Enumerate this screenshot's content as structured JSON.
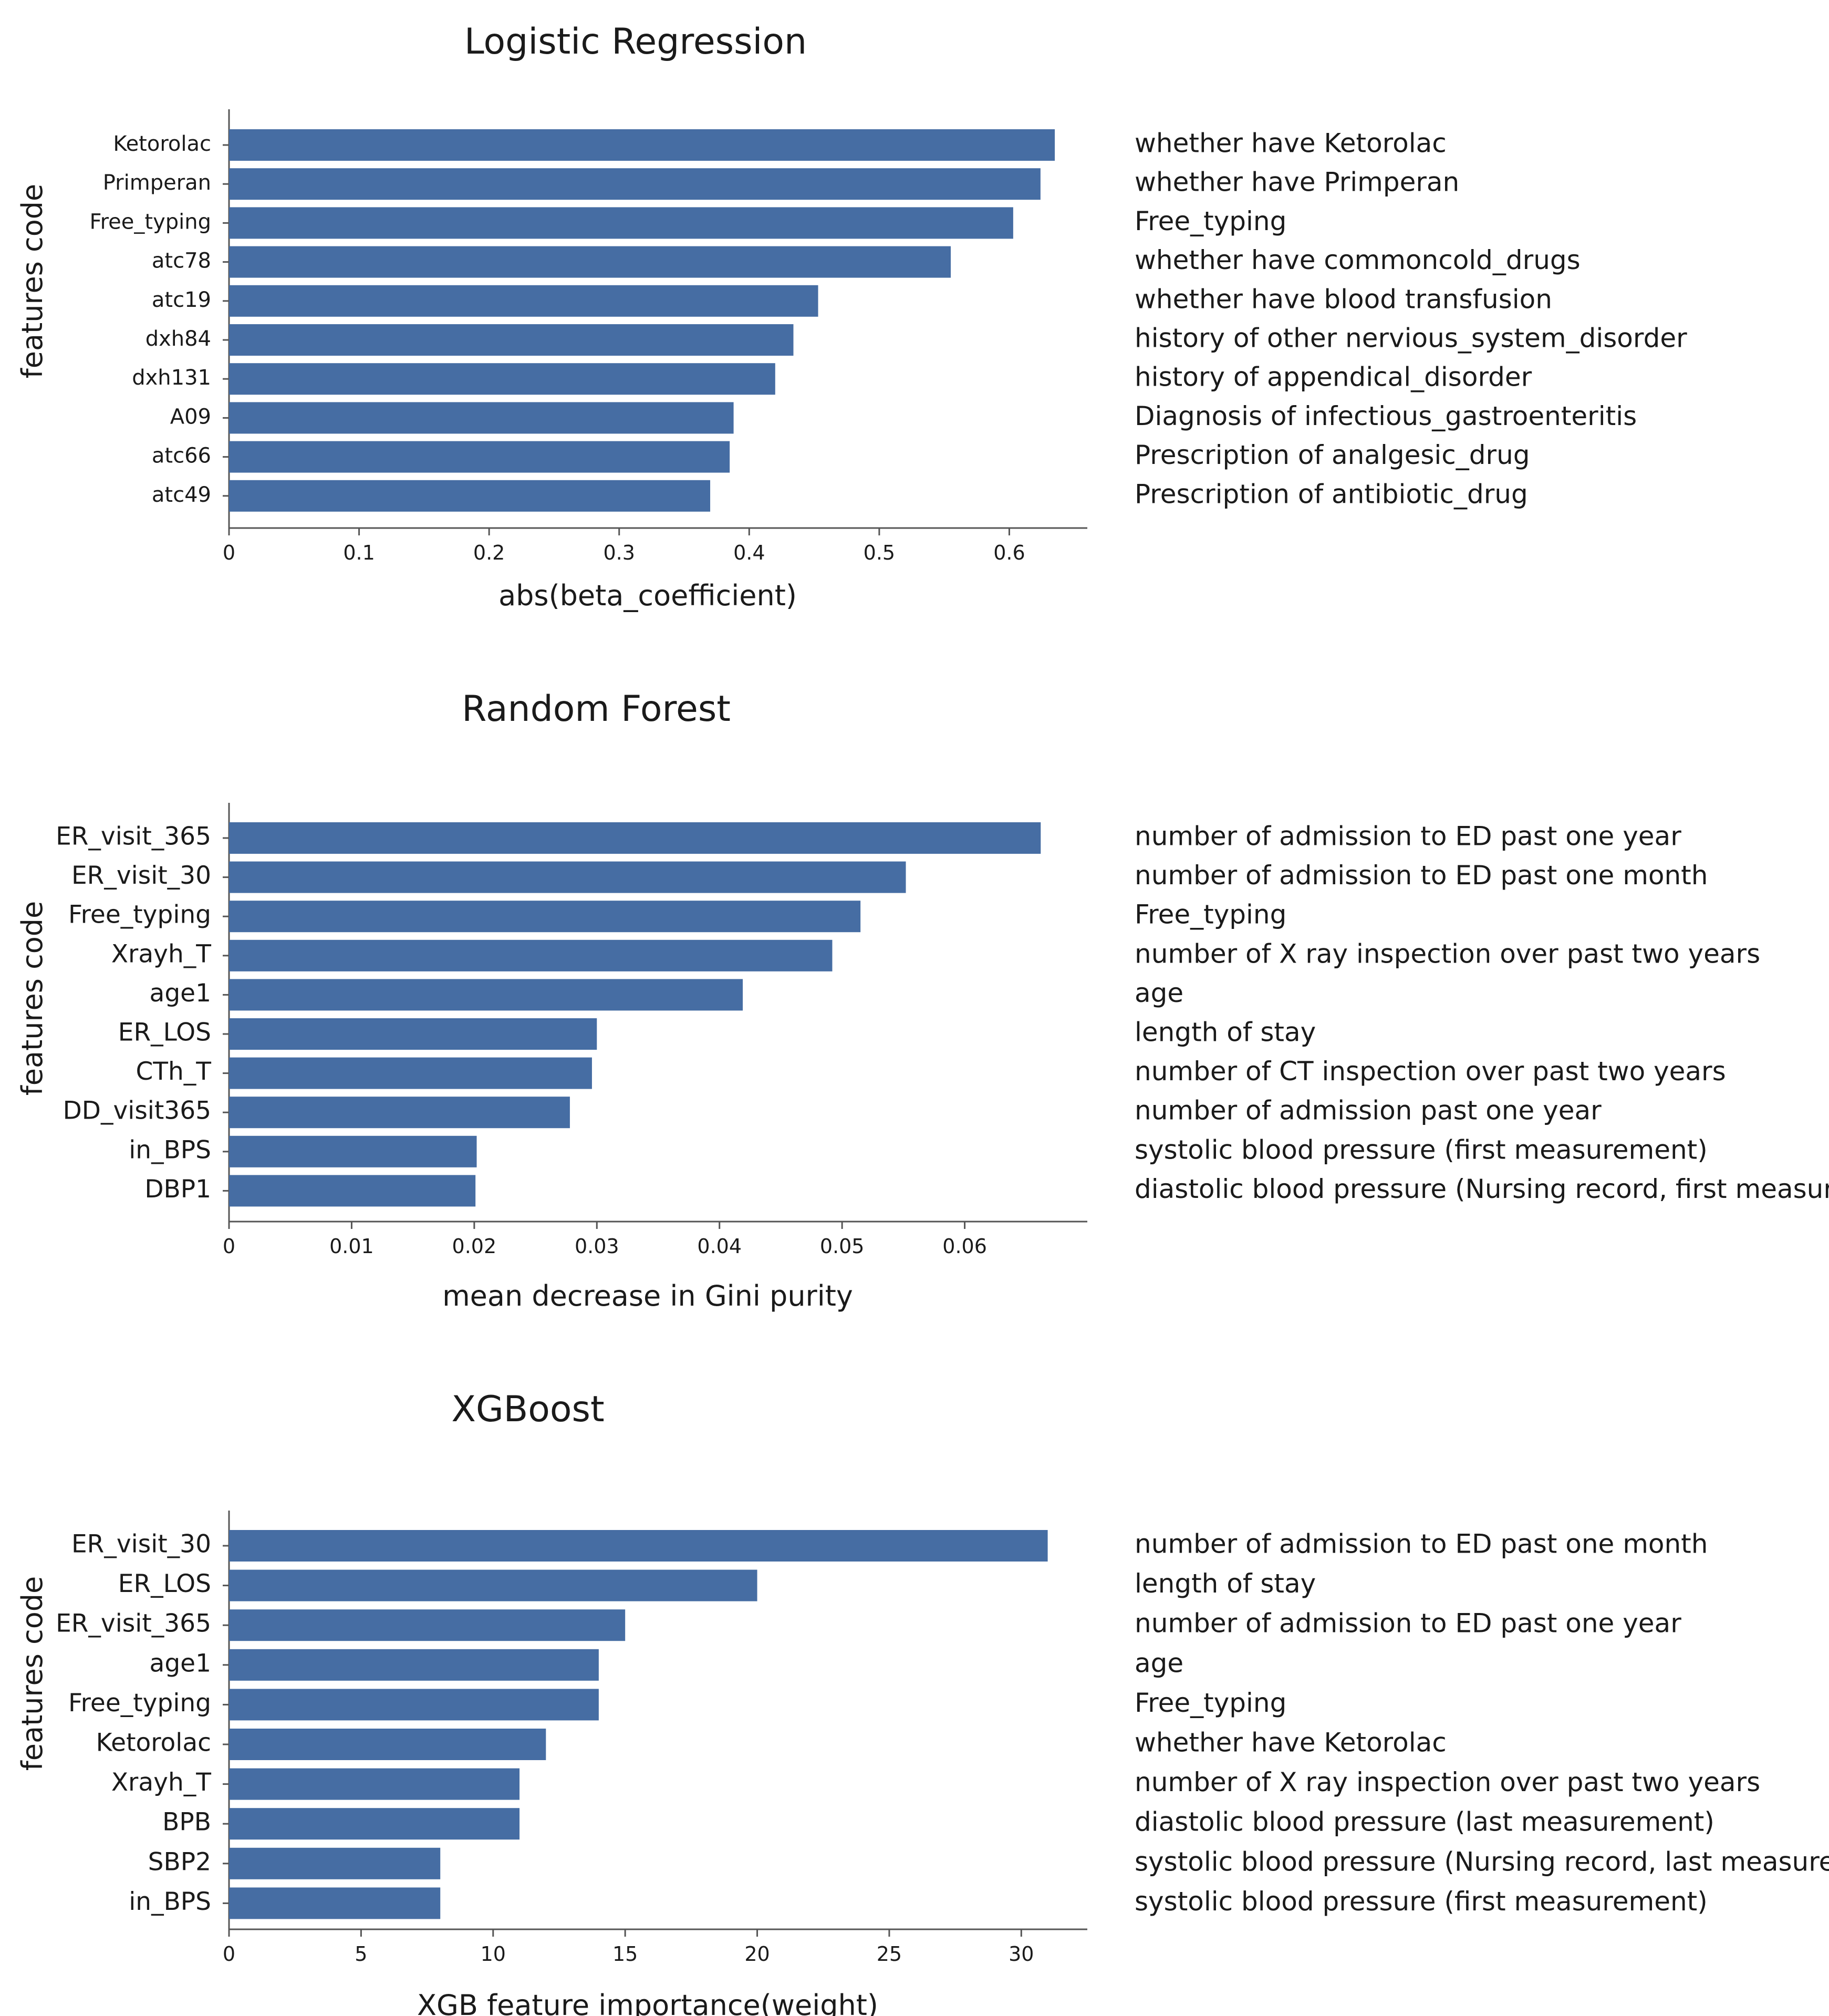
{
  "chart_data": [
    {
      "id": "lr",
      "type": "bar",
      "orientation": "horizontal",
      "title": "Logistic Regression",
      "xlabel": "abs(beta_coefficient)",
      "ylabel": "features code",
      "xlim": [
        0,
        0.66
      ],
      "xticks": [
        0,
        0.1,
        0.2,
        0.3,
        0.4,
        0.5,
        0.6
      ],
      "xtick_labels": [
        "0",
        "0.1",
        "0.2",
        "0.3",
        "0.4",
        "0.5",
        "0.6"
      ],
      "categories": [
        "Ketorolac",
        "Primperan",
        "Free_typing",
        "atc78",
        "atc19",
        "dxh84",
        "dxh131",
        "A09",
        "atc66",
        "atc49"
      ],
      "values": [
        0.635,
        0.624,
        0.603,
        0.555,
        0.453,
        0.434,
        0.42,
        0.388,
        0.385,
        0.37
      ],
      "descriptions": [
        "whether have Ketorolac",
        "whether have Primperan",
        "Free_typing",
        "whether have commoncold_drugs",
        "whether have blood transfusion",
        "history of other nervious_system_disorder",
        "history of  appendical_disorder",
        "Diagnosis of infectious_gastroenteritis",
        "Prescription of analgesic_drug",
        "Prescription of antibiotic_drug"
      ],
      "bar_color": "#466da3",
      "grid": false
    },
    {
      "id": "rf",
      "type": "bar",
      "orientation": "horizontal",
      "title": "Random Forest",
      "xlabel": "mean decrease in Gini purity",
      "ylabel": "features code",
      "xlim": [
        0,
        0.07
      ],
      "xticks": [
        0,
        0.01,
        0.02,
        0.03,
        0.04,
        0.05,
        0.06
      ],
      "xtick_labels": [
        "0",
        "0.01",
        "0.02",
        "0.03",
        "0.04",
        "0.05",
        "0.06"
      ],
      "categories": [
        "ER_visit_365",
        "ER_visit_30",
        "Free_typing",
        "Xrayh_T",
        "age1",
        "ER_LOS",
        "CTh_T",
        "DD_visit365",
        "in_BPS",
        "DBP1"
      ],
      "values": [
        0.0662,
        0.0552,
        0.0515,
        0.0492,
        0.0419,
        0.03,
        0.0296,
        0.0278,
        0.0202,
        0.0201
      ],
      "descriptions": [
        "number of admission to ED past one year",
        "number of admission to ED past one month",
        "Free_typing",
        "number of X ray inspection over past two years",
        "age",
        "length of stay",
        "number of CT inspection over past two years",
        "number of admission past one year",
        "systolic blood pressure (first measurement)",
        "diastolic blood pressure (Nursing record, first measurement)"
      ],
      "bar_color": "#466da3",
      "grid": false
    },
    {
      "id": "xgb",
      "type": "bar",
      "orientation": "horizontal",
      "title": "XGBoost",
      "xlabel": "XGB feature importance(weight)",
      "ylabel": "features code",
      "xlim": [
        0,
        32.5
      ],
      "xticks": [
        0,
        5,
        10,
        15,
        20,
        25,
        30
      ],
      "xtick_labels": [
        "0",
        "5",
        "10",
        "15",
        "20",
        "25",
        "30"
      ],
      "categories": [
        "ER_visit_30",
        "ER_LOS",
        "ER_visit_365",
        "age1",
        "Free_typing",
        "Ketorolac",
        "Xrayh_T",
        "BPB",
        "SBP2",
        "in_BPS"
      ],
      "values": [
        31,
        20,
        15,
        14,
        14,
        12,
        11,
        11,
        8,
        8
      ],
      "descriptions": [
        "number of admission to ED past one month",
        "length of stay",
        "number of admission to ED past one year",
        "age",
        "Free_typing",
        "whether have Ketorolac",
        "number of X ray inspection over past two years",
        "diastolic blood pressure (last measurement)",
        "systolic blood pressure (Nursing record, last measurement)",
        "systolic blood pressure (first measurement)"
      ],
      "bar_color": "#466da3",
      "grid": false
    }
  ]
}
